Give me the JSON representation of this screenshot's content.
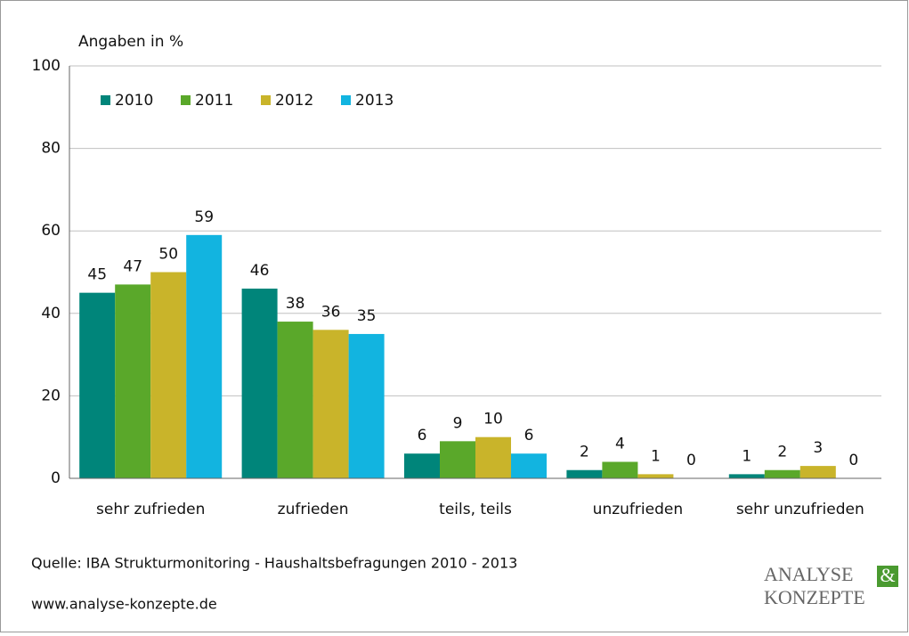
{
  "chart_data": {
    "type": "bar",
    "y_label": "Angaben in  %",
    "categories": [
      "sehr zufrieden",
      "zufrieden",
      "teils, teils",
      "unzufrieden",
      "sehr unzufrieden"
    ],
    "series": [
      {
        "name": "2010",
        "color": "#00857a",
        "values": [
          45,
          46,
          6,
          2,
          1
        ]
      },
      {
        "name": "2011",
        "color": "#5aa82a",
        "values": [
          47,
          38,
          9,
          4,
          2
        ]
      },
      {
        "name": "2012",
        "color": "#c9b42a",
        "values": [
          50,
          36,
          10,
          1,
          3
        ]
      },
      {
        "name": "2013",
        "color": "#12b4e0",
        "values": [
          59,
          35,
          6,
          0,
          0
        ]
      }
    ],
    "ylim": [
      0,
      100
    ],
    "yticks": [
      0,
      20,
      40,
      60,
      80,
      100
    ],
    "grid": true,
    "legend": "upper-left",
    "source": "Quelle:  IBA Strukturmonitoring - Haushaltsbefragungen 2010 - 2013",
    "url": "www.analyse-konzepte.de",
    "logo": {
      "line1": "ANALYSE",
      "amp": "&",
      "line2": "KONZEPTE"
    }
  }
}
